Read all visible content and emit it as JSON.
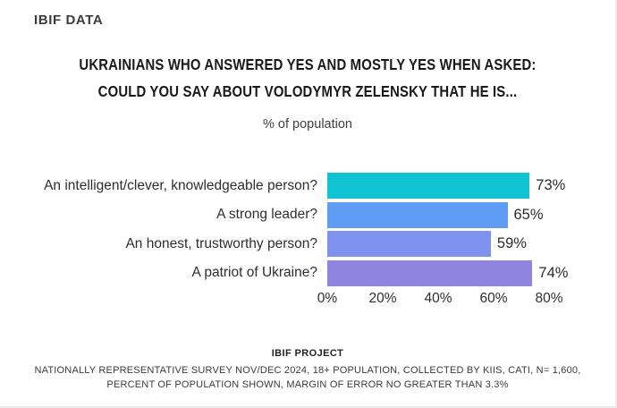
{
  "header": {
    "brand": "IBIF DATA",
    "title_line1": "UKRAINIANS WHO ANSWERED YES AND MOSTLY YES WHEN ASKED:",
    "title_line2": "COULD YOU SAY ABOUT VOLODYMYR ZELENSKY THAT HE IS...",
    "subtitle": "% of population"
  },
  "chart_data": {
    "type": "bar",
    "orientation": "horizontal",
    "title": "UKRAINIANS WHO ANSWERED YES AND MOSTLY YES WHEN ASKED: COULD YOU SAY ABOUT VOLODYMYR ZELENSKY THAT HE IS...",
    "subtitle": "% of population",
    "categories": [
      "An intelligent/clever, knowledgeable person?",
      "A strong leader?",
      "An honest, trustworthy person?",
      "A patriot of Ukraine?"
    ],
    "values": [
      73,
      65,
      59,
      74
    ],
    "value_labels": [
      "73%",
      "65%",
      "59%",
      "74%"
    ],
    "bar_colors": [
      "#12c3d1",
      "#5f9cf4",
      "#7e92ee",
      "#9184e1"
    ],
    "x_ticks": [
      "0%",
      "20%",
      "40%",
      "60%",
      "80%"
    ],
    "xlim": [
      0,
      80
    ],
    "grid": false,
    "legend": "none"
  },
  "footer": {
    "title": "IBIF PROJECT",
    "line1": "NATIONALLY REPRESENTATIVE SURVEY NOV/DEC 2024, 18+ POPULATION, COLLECTED BY KIIS, CATI, N= 1,600,",
    "line2": "PERCENT OF POPULATION SHOWN, MARGIN OF ERROR NO GREATER THAN 3.3%"
  }
}
